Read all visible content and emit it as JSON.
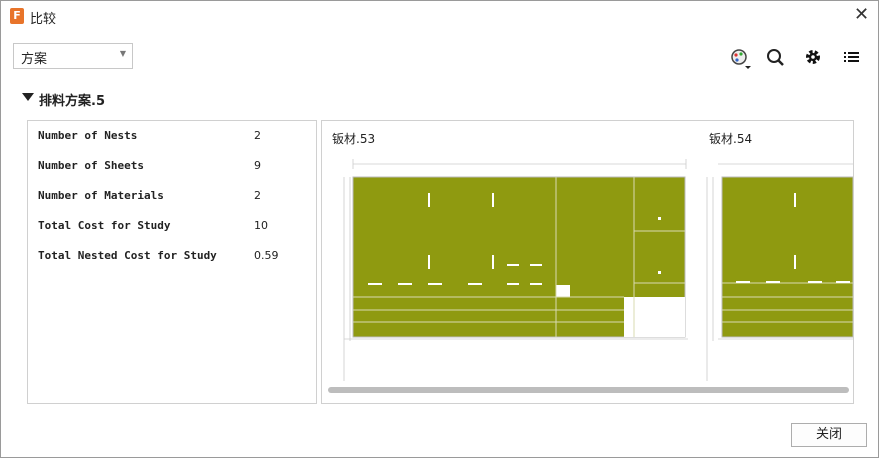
{
  "window": {
    "title": "比较"
  },
  "toolbar": {
    "dropdown": "方案"
  },
  "section": {
    "title": "排料方案.5"
  },
  "stats": {
    "rows": [
      [
        "Number of Nests",
        "2"
      ],
      [
        "Number of Sheets",
        "9"
      ],
      [
        "Number of Materials",
        "2"
      ],
      [
        "Total Cost for Study",
        "10"
      ],
      [
        "Total Nested Cost for Study",
        "0.59"
      ]
    ]
  },
  "sheets": [
    {
      "label": "钣材.53"
    },
    {
      "label": "钣材.54"
    }
  ],
  "footer": {
    "button": "关闭"
  }
}
